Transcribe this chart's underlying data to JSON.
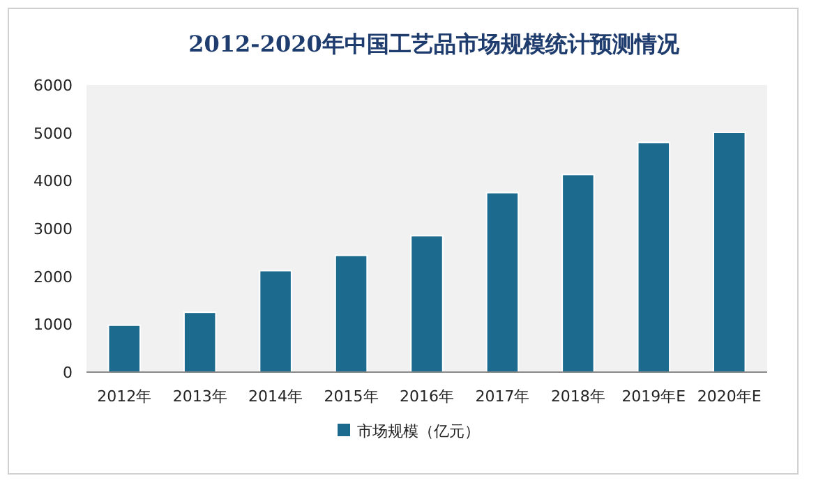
{
  "chart_data": {
    "type": "bar",
    "title": "2012-2020年中国工艺品市场规模统计预测情况",
    "categories": [
      "2012年",
      "2013年",
      "2014年",
      "2015年",
      "2016年",
      "2017年",
      "2018年",
      "2019年E",
      "2020年E"
    ],
    "series": [
      {
        "name": "市场规模（亿元）",
        "color": "#1c6b8e",
        "values": [
          980,
          1250,
          2120,
          2440,
          2850,
          3750,
          4130,
          4800,
          5010
        ]
      }
    ],
    "ylim": [
      0,
      6000
    ],
    "yticks": [
      0,
      1000,
      2000,
      3000,
      4000,
      5000,
      6000
    ],
    "grid": false,
    "legend": "bottom"
  }
}
